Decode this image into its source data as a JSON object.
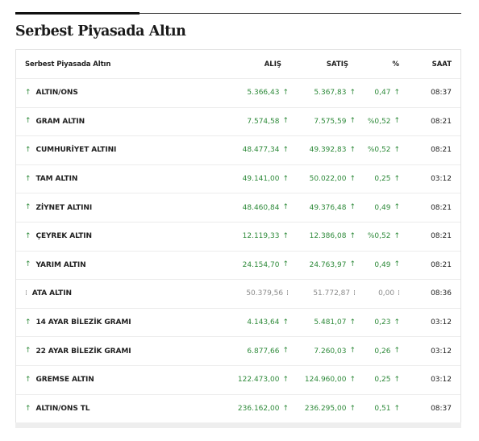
{
  "page": {
    "title": "Serbest Piyasada Altın"
  },
  "table": {
    "headers": {
      "name": "Serbest Piyasada Altın",
      "buy": "ALIŞ",
      "sell": "SATIŞ",
      "pct": "%",
      "time": "SAAT"
    },
    "colors": {
      "up": "#2e8a3a",
      "flat": "#8a8a8a"
    },
    "icons": {
      "up": "arrow-up-icon",
      "flat": "flat-dotted-icon"
    },
    "arrow_glyphs": {
      "up": "↑",
      "flat": "⁞"
    },
    "rows": [
      {
        "name": "ALTIN/ONS",
        "buy": "5.366,43",
        "sell": "5.367,83",
        "pct": "0,47",
        "time": "08:37",
        "dir": "up"
      },
      {
        "name": "GRAM ALTIN",
        "buy": "7.574,58",
        "sell": "7.575,59",
        "pct": "%0,52",
        "time": "08:21",
        "dir": "up"
      },
      {
        "name": "CUMHURİYET ALTINI",
        "buy": "48.477,34",
        "sell": "49.392,83",
        "pct": "%0,52",
        "time": "08:21",
        "dir": "up"
      },
      {
        "name": "TAM ALTIN",
        "buy": "49.141,00",
        "sell": "50.022,00",
        "pct": "0,25",
        "time": "03:12",
        "dir": "up"
      },
      {
        "name": "ZİYNET ALTINI",
        "buy": "48.460,84",
        "sell": "49.376,48",
        "pct": "0,49",
        "time": "08:21",
        "dir": "up"
      },
      {
        "name": "ÇEYREK ALTIN",
        "buy": "12.119,33",
        "sell": "12.386,08",
        "pct": "%0,52",
        "time": "08:21",
        "dir": "up"
      },
      {
        "name": "YARIM ALTIN",
        "buy": "24.154,70",
        "sell": "24.763,97",
        "pct": "0,49",
        "time": "08:21",
        "dir": "up"
      },
      {
        "name": "ATA ALTIN",
        "buy": "50.379,56",
        "sell": "51.772,87",
        "pct": "0,00",
        "time": "08:36",
        "dir": "flat"
      },
      {
        "name": "14 AYAR BİLEZİK GRAMI",
        "buy": "4.143,64",
        "sell": "5.481,07",
        "pct": "0,23",
        "time": "03:12",
        "dir": "up"
      },
      {
        "name": "22 AYAR BİLEZİK GRAMI",
        "buy": "6.877,66",
        "sell": "7.260,03",
        "pct": "0,26",
        "time": "03:12",
        "dir": "up"
      },
      {
        "name": "GREMSE ALTIN",
        "buy": "122.473,00",
        "sell": "124.960,00",
        "pct": "0,25",
        "time": "03:12",
        "dir": "up"
      },
      {
        "name": "ALTIN/ONS TL",
        "buy": "236.162,00",
        "sell": "236.295,00",
        "pct": "0,51",
        "time": "08:37",
        "dir": "up"
      }
    ]
  }
}
